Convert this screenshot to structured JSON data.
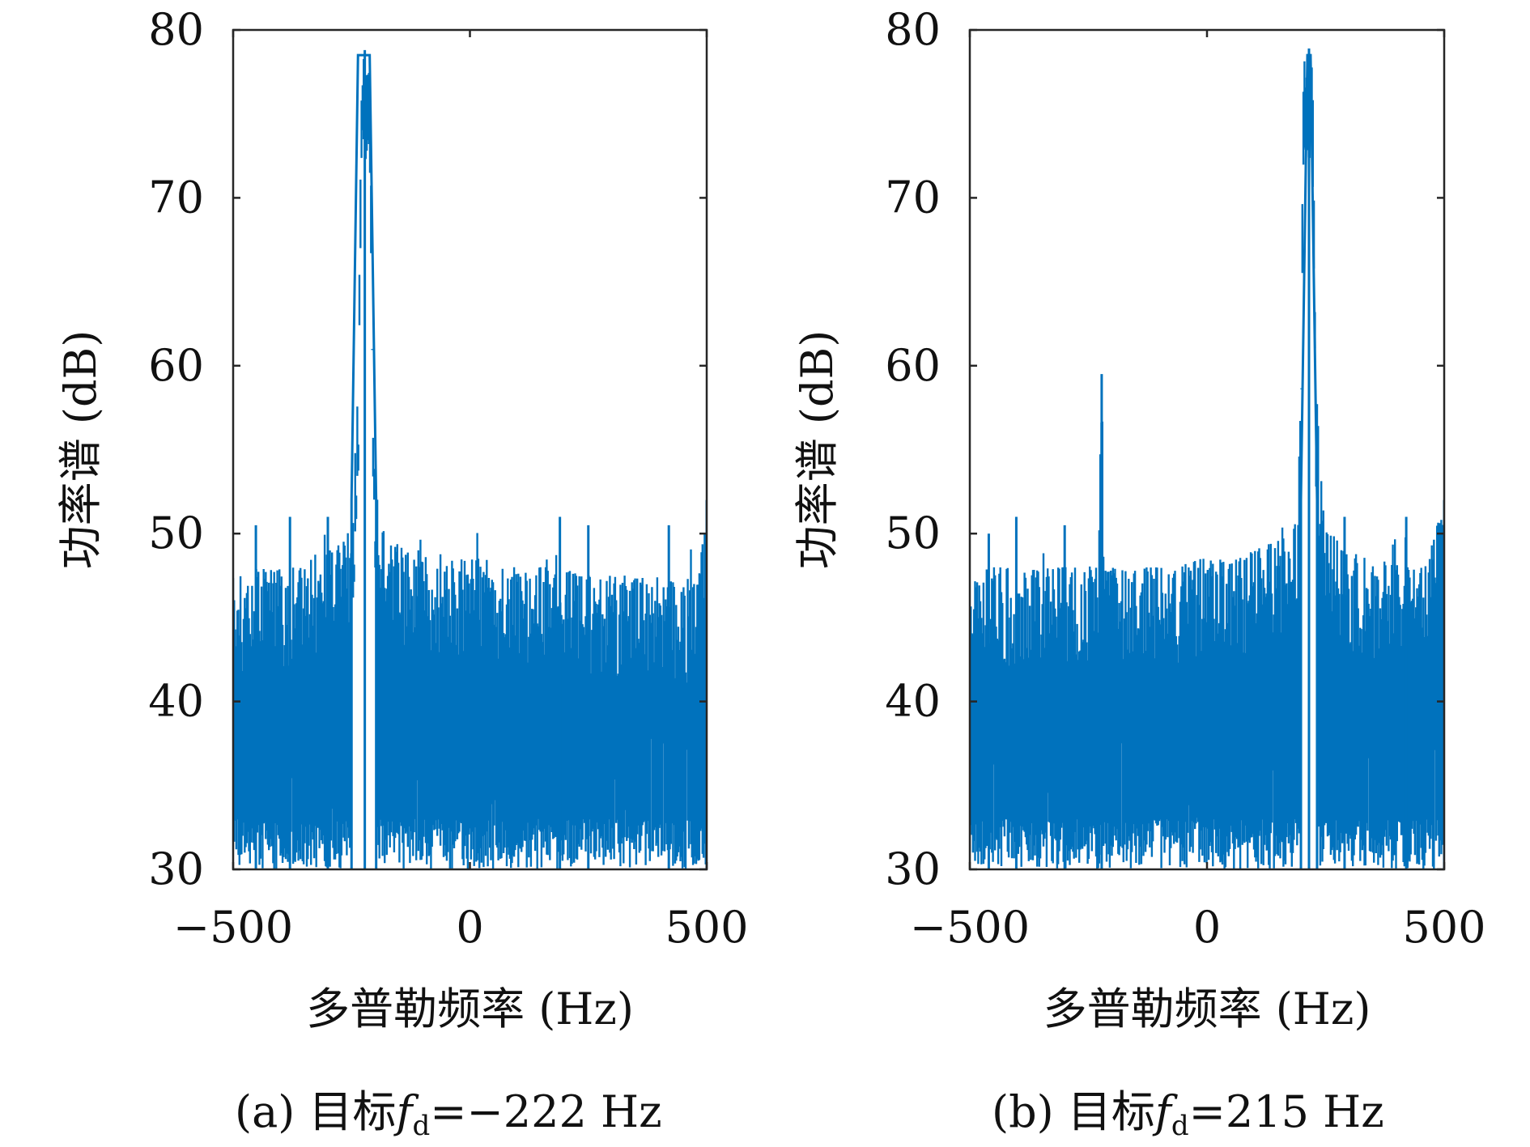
{
  "chart_data": [
    {
      "type": "line",
      "caption_prefix": "(a) 目标",
      "caption_symbol": "f",
      "caption_subscript": "d",
      "caption_value": "=−222 Hz",
      "xlabel": "多普勒频率 (Hz)",
      "ylabel": "功率谱 (dB)",
      "xlim": [
        -500,
        500
      ],
      "ylim": [
        30,
        80
      ],
      "xticks": [
        -500,
        0,
        500
      ],
      "xtick_labels": [
        "−500",
        "0",
        "500"
      ],
      "yticks": [
        30,
        40,
        50,
        60,
        70,
        80
      ],
      "ytick_labels": [
        "30",
        "40",
        "50",
        "60",
        "70",
        "80"
      ],
      "grid": false,
      "series": [
        {
          "color": "#0072BD",
          "x": [
            -500,
            -470,
            -440,
            -410,
            -380,
            -350,
            -320,
            -290,
            -270,
            -258,
            -250,
            -242,
            -236,
            -232,
            -228,
            -224,
            -222,
            -220,
            -216,
            -212,
            -208,
            -204,
            -200,
            -192,
            -180,
            -160,
            -120,
            -80,
            -40,
            0,
            40,
            80,
            120,
            160,
            200,
            240,
            280,
            320,
            360,
            400,
            440,
            480,
            500
          ],
          "noise_floor": [
            46,
            48,
            48,
            48,
            48,
            48,
            49,
            49,
            49.5,
            50,
            52,
            55,
            60,
            70,
            78,
            78.5,
            78,
            77.5,
            78.5,
            78.5,
            70,
            58,
            54,
            51,
            50,
            49.5,
            49,
            49,
            48.5,
            48.5,
            48.5,
            48,
            48,
            48,
            48,
            47.5,
            47.5,
            47.5,
            47.5,
            47.5,
            47,
            47,
            52
          ],
          "peak_spikes": [
            {
              "x": -452,
              "y": 50.5
            },
            {
              "x": -380,
              "y": 51
            },
            {
              "x": -300,
              "y": 51
            },
            {
              "x": -222,
              "y": 78.8
            },
            {
              "x": 190,
              "y": 51
            },
            {
              "x": 250,
              "y": 50.5
            },
            {
              "x": 420,
              "y": 50.5
            },
            {
              "x": 500,
              "y": 52
            }
          ],
          "gap": [
            -250,
            -198
          ]
        }
      ]
    },
    {
      "type": "line",
      "caption_prefix": "(b) 目标",
      "caption_symbol": "f",
      "caption_subscript": "d",
      "caption_value": "=215 Hz",
      "xlabel": "多普勒频率 (Hz)",
      "ylabel": "功率谱 (dB)",
      "xlim": [
        -500,
        500
      ],
      "ylim": [
        30,
        80
      ],
      "xticks": [
        -500,
        0,
        500
      ],
      "xtick_labels": [
        "−500",
        "0",
        "500"
      ],
      "yticks": [
        30,
        40,
        50,
        60,
        70,
        80
      ],
      "ytick_labels": [
        "30",
        "40",
        "50",
        "60",
        "70",
        "80"
      ],
      "grid": false,
      "series": [
        {
          "color": "#0072BD",
          "x": [
            -500,
            -460,
            -420,
            -380,
            -340,
            -300,
            -260,
            -230,
            -222,
            -214,
            -180,
            -140,
            -100,
            -60,
            -20,
            20,
            60,
            100,
            140,
            170,
            180,
            190,
            196,
            200,
            204,
            208,
            212,
            215,
            218,
            222,
            226,
            230,
            236,
            244,
            260,
            300,
            340,
            380,
            420,
            460,
            500
          ],
          "noise_floor": [
            47,
            48,
            48,
            48,
            48,
            48,
            48,
            48,
            59.5,
            48,
            48,
            48,
            48,
            48,
            48.5,
            48.5,
            48.5,
            49,
            49.5,
            50,
            50.5,
            52,
            56,
            68,
            78.5,
            78,
            77.5,
            77.5,
            78,
            78.5,
            70,
            60,
            55,
            52,
            50,
            49,
            48.5,
            48.5,
            48,
            48,
            52
          ],
          "peak_spikes": [
            {
              "x": -460,
              "y": 50
            },
            {
              "x": -402,
              "y": 51
            },
            {
              "x": -300,
              "y": 50.5
            },
            {
              "x": -222,
              "y": 59.5
            },
            {
              "x": 215,
              "y": 78.9
            },
            {
              "x": 290,
              "y": 51
            },
            {
              "x": 420,
              "y": 51
            },
            {
              "x": 500,
              "y": 52
            }
          ],
          "gap": [
            198,
            232
          ]
        }
      ]
    }
  ]
}
